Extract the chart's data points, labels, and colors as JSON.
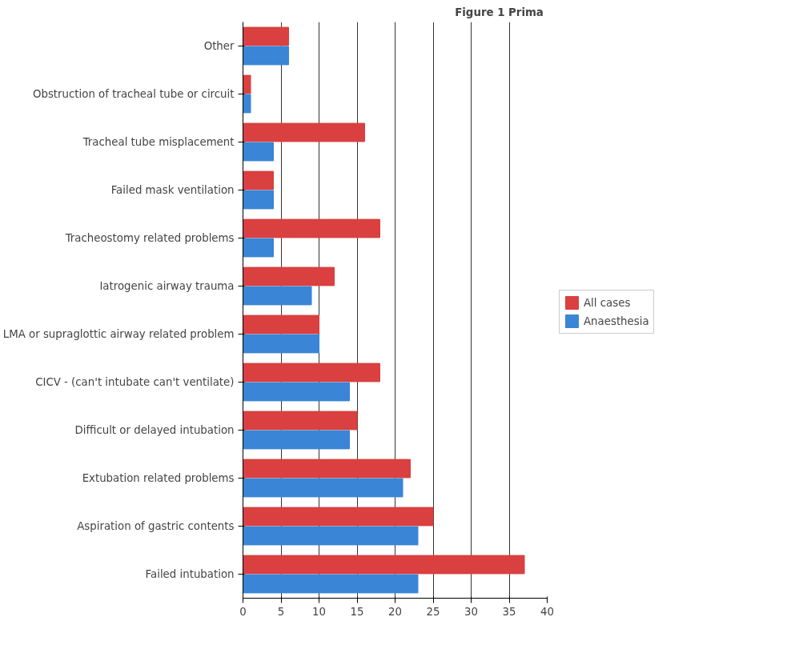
{
  "chart_data": {
    "type": "bar",
    "orientation": "horizontal",
    "categories": [
      "Other",
      "Obstruction of tracheal tube or circuit",
      "Tracheal tube misplacement",
      "Failed mask ventilation",
      "Tracheostomy related problems",
      "Iatrogenic airway trauma",
      "LMA or supraglottic airway related problem",
      "CICV - (can't intubate can't ventilate)",
      "Difficult or delayed intubation",
      "Extubation related problems",
      "Aspiration of gastric contents",
      "Failed intubation"
    ],
    "series": [
      {
        "name": "All cases",
        "color": "#d9403f",
        "values": [
          6,
          1,
          16,
          4,
          18,
          12,
          10,
          18,
          15,
          22,
          25,
          37
        ]
      },
      {
        "name": "Anaesthesia",
        "color": "#3a85d6",
        "values": [
          6,
          1,
          4,
          4,
          4,
          9,
          10,
          14,
          14,
          21,
          23,
          23
        ]
      }
    ],
    "xlim": [
      0,
      40
    ],
    "xticks": [
      0,
      5,
      10,
      15,
      20,
      25,
      30,
      35,
      40
    ],
    "grid": "x",
    "legend": "right",
    "annotations": [
      "Figure 1  Prima"
    ]
  }
}
